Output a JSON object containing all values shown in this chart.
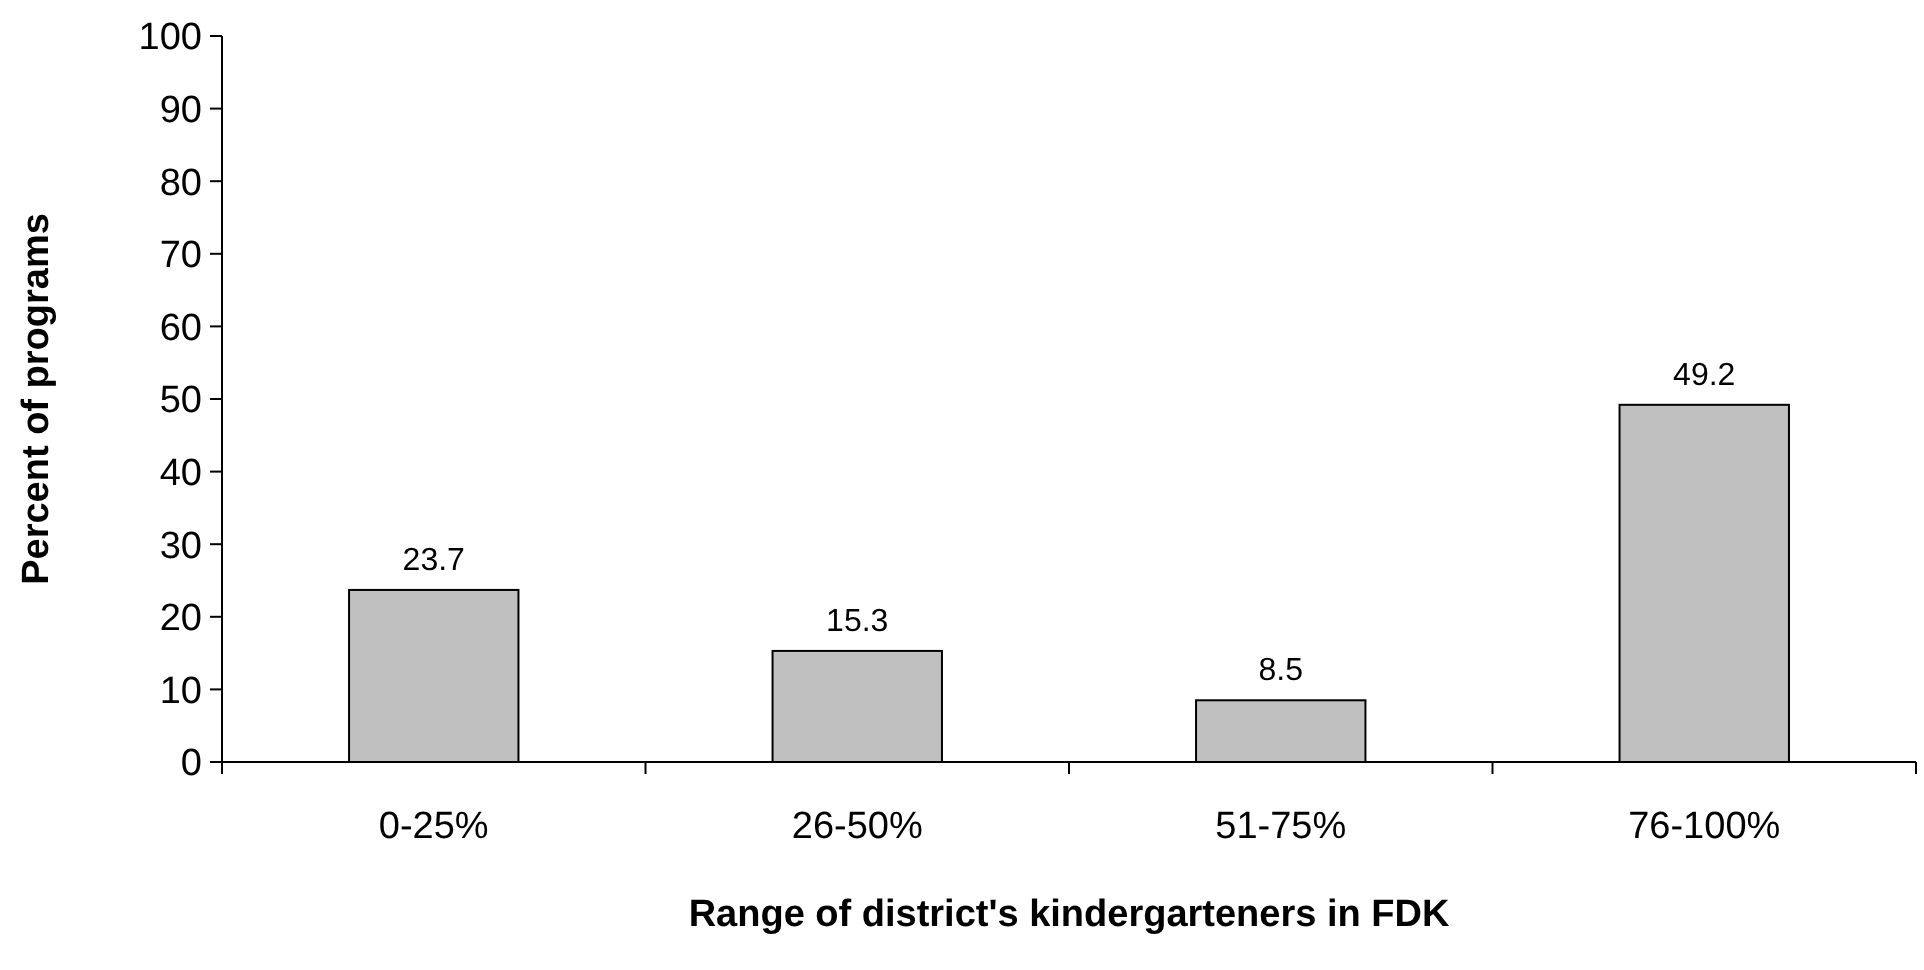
{
  "chart_data": {
    "type": "bar",
    "xlabel": "Range of district's kindergarteners in FDK",
    "ylabel": "Percent of programs",
    "categories": [
      "0-25%",
      "26-50%",
      "51-75%",
      "76-100%"
    ],
    "values": [
      23.7,
      15.3,
      8.5,
      49.2
    ],
    "color": "#c0c0c0",
    "data_labels": true,
    "grid": false,
    "ylim": [
      0,
      100
    ],
    "yticks": [
      0,
      10,
      20,
      30,
      40,
      50,
      60,
      70,
      80,
      90,
      100
    ]
  }
}
